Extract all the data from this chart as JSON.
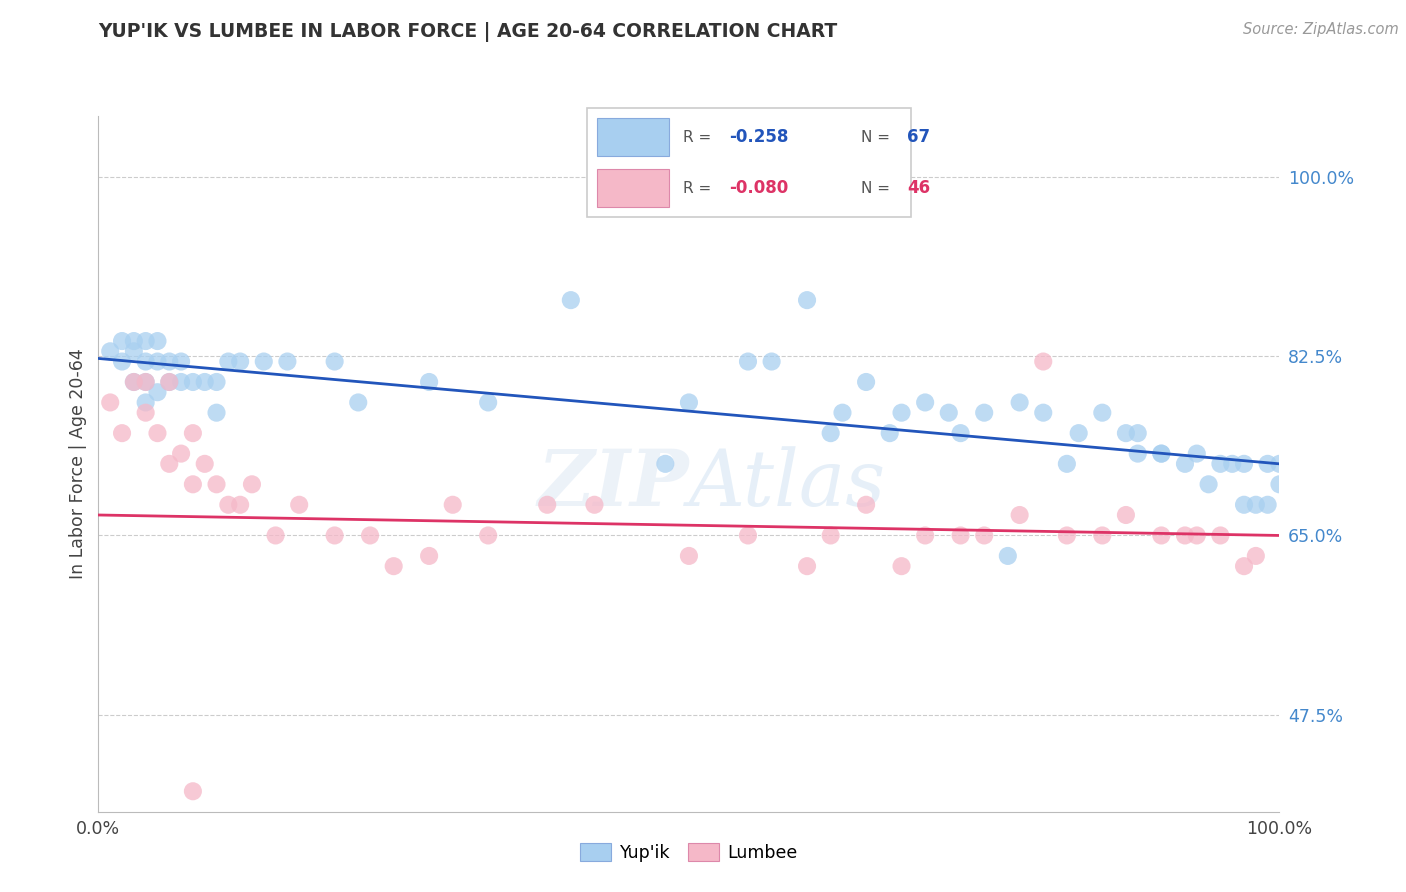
{
  "title": "YUP'IK VS LUMBEE IN LABOR FORCE | AGE 20-64 CORRELATION CHART",
  "source": "Source: ZipAtlas.com",
  "ylabel": "In Labor Force | Age 20-64",
  "xlim": [
    0,
    1
  ],
  "ylim": [
    0.38,
    1.06
  ],
  "yticks": [
    0.475,
    0.65,
    0.825,
    1.0
  ],
  "ytick_labels": [
    "47.5%",
    "65.0%",
    "82.5%",
    "100.0%"
  ],
  "xtick_labels": [
    "0.0%",
    "100.0%"
  ],
  "color_yupik": "#a8cff0",
  "color_lumbee": "#f5b8c8",
  "line_color_yupik": "#2255bb",
  "line_color_lumbee": "#dd3366",
  "yupik_x": [
    0.01,
    0.02,
    0.02,
    0.03,
    0.03,
    0.03,
    0.04,
    0.04,
    0.04,
    0.04,
    0.05,
    0.05,
    0.05,
    0.06,
    0.06,
    0.07,
    0.07,
    0.08,
    0.09,
    0.1,
    0.1,
    0.11,
    0.12,
    0.14,
    0.16,
    0.2,
    0.22,
    0.28,
    0.33,
    0.4,
    0.48,
    0.5,
    0.55,
    0.57,
    0.6,
    0.62,
    0.63,
    0.65,
    0.67,
    0.68,
    0.7,
    0.72,
    0.73,
    0.75,
    0.77,
    0.78,
    0.8,
    0.82,
    0.83,
    0.85,
    0.87,
    0.88,
    0.88,
    0.9,
    0.9,
    0.92,
    0.93,
    0.94,
    0.95,
    0.96,
    0.97,
    0.97,
    0.98,
    0.99,
    0.99,
    1.0,
    1.0
  ],
  "yupik_y": [
    0.83,
    0.82,
    0.84,
    0.8,
    0.83,
    0.84,
    0.78,
    0.8,
    0.82,
    0.84,
    0.79,
    0.82,
    0.84,
    0.8,
    0.82,
    0.8,
    0.82,
    0.8,
    0.8,
    0.77,
    0.8,
    0.82,
    0.82,
    0.82,
    0.82,
    0.82,
    0.78,
    0.8,
    0.78,
    0.88,
    0.72,
    0.78,
    0.82,
    0.82,
    0.88,
    0.75,
    0.77,
    0.8,
    0.75,
    0.77,
    0.78,
    0.77,
    0.75,
    0.77,
    0.63,
    0.78,
    0.77,
    0.72,
    0.75,
    0.77,
    0.75,
    0.73,
    0.75,
    0.73,
    0.73,
    0.72,
    0.73,
    0.7,
    0.72,
    0.72,
    0.72,
    0.68,
    0.68,
    0.72,
    0.68,
    0.7,
    0.72
  ],
  "lumbee_x": [
    0.01,
    0.02,
    0.03,
    0.04,
    0.04,
    0.05,
    0.06,
    0.06,
    0.07,
    0.08,
    0.08,
    0.09,
    0.1,
    0.11,
    0.12,
    0.13,
    0.15,
    0.17,
    0.2,
    0.23,
    0.25,
    0.28,
    0.3,
    0.33,
    0.38,
    0.42,
    0.5,
    0.55,
    0.6,
    0.62,
    0.65,
    0.68,
    0.7,
    0.73,
    0.75,
    0.78,
    0.8,
    0.82,
    0.85,
    0.87,
    0.9,
    0.92,
    0.93,
    0.95,
    0.97,
    0.98
  ],
  "lumbee_y": [
    0.78,
    0.75,
    0.8,
    0.77,
    0.8,
    0.75,
    0.72,
    0.8,
    0.73,
    0.7,
    0.75,
    0.72,
    0.7,
    0.68,
    0.68,
    0.7,
    0.65,
    0.68,
    0.65,
    0.65,
    0.62,
    0.63,
    0.68,
    0.65,
    0.68,
    0.68,
    0.63,
    0.65,
    0.62,
    0.65,
    0.68,
    0.62,
    0.65,
    0.65,
    0.65,
    0.67,
    0.82,
    0.65,
    0.65,
    0.67,
    0.65,
    0.65,
    0.65,
    0.65,
    0.62,
    0.63
  ],
  "lumbee_outlier_x": [
    0.08
  ],
  "lumbee_outlier_y": [
    0.4
  ]
}
